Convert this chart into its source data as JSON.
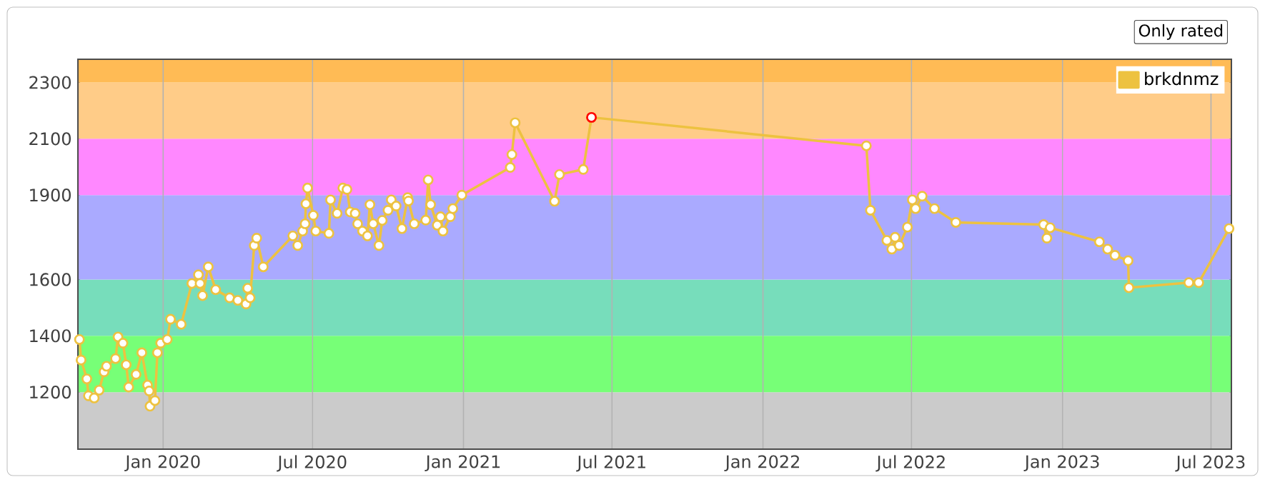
{
  "chart_data": {
    "type": "line",
    "legend": "top right",
    "grid": "x",
    "marker": "circle",
    "annotations": [
      "Only rated"
    ],
    "xlim": [
      "2019-09-20",
      "2023-07-25"
    ],
    "ylim": [
      1000,
      2380
    ],
    "xticks": [
      {
        "value": "2020-01-01",
        "label": "Jan 2020"
      },
      {
        "value": "2020-07-01",
        "label": "Jul 2020"
      },
      {
        "value": "2021-01-01",
        "label": "Jan 2021"
      },
      {
        "value": "2021-07-01",
        "label": "Jul 2021"
      },
      {
        "value": "2022-01-01",
        "label": "Jan 2022"
      },
      {
        "value": "2022-07-01",
        "label": "Jul 2022"
      },
      {
        "value": "2023-01-01",
        "label": "Jan 2023"
      },
      {
        "value": "2023-07-01",
        "label": "Jul 2023"
      }
    ],
    "yticks": [
      1200,
      1400,
      1600,
      1900,
      2100,
      2300
    ],
    "bands": [
      {
        "axis": "y",
        "from": 1000,
        "to": 1200,
        "color": "#cbcbcb"
      },
      {
        "axis": "y",
        "from": 1200,
        "to": 1400,
        "color": "#77ff77"
      },
      {
        "axis": "y",
        "from": 1400,
        "to": 1600,
        "color": "#77ddbb"
      },
      {
        "axis": "y",
        "from": 1600,
        "to": 1900,
        "color": "#aaaaff"
      },
      {
        "axis": "y",
        "from": 1900,
        "to": 2100,
        "color": "#ff88ff"
      },
      {
        "axis": "y",
        "from": 2100,
        "to": 2300,
        "color": "#ffcc88"
      },
      {
        "axis": "y",
        "from": 2300,
        "to": 2380,
        "color": "#ffbb55"
      }
    ],
    "series": [
      {
        "name": "brkdnmz",
        "color": "#edc240",
        "x": [
          "2019-09-21",
          "2019-09-23",
          "2019-09-30",
          "2019-10-02",
          "2019-10-09",
          "2019-10-15",
          "2019-10-21",
          "2019-10-24",
          "2019-11-04",
          "2019-11-07",
          "2019-11-13",
          "2019-11-17",
          "2019-11-20",
          "2019-11-29",
          "2019-12-06",
          "2019-12-13",
          "2019-12-15",
          "2019-12-16",
          "2019-12-22",
          "2019-12-25",
          "2019-12-29",
          "2020-01-06",
          "2020-01-10",
          "2020-01-23",
          "2020-02-05",
          "2020-02-13",
          "2020-02-15",
          "2020-02-18",
          "2020-02-25",
          "2020-03-05",
          "2020-03-22",
          "2020-04-01",
          "2020-04-11",
          "2020-04-13",
          "2020-04-16",
          "2020-04-21",
          "2020-04-24",
          "2020-05-02",
          "2020-06-07",
          "2020-06-13",
          "2020-06-19",
          "2020-06-22",
          "2020-06-23",
          "2020-06-25",
          "2020-07-02",
          "2020-07-05",
          "2020-07-21",
          "2020-07-23",
          "2020-07-31",
          "2020-08-07",
          "2020-08-12",
          "2020-08-16",
          "2020-08-22",
          "2020-08-25",
          "2020-08-31",
          "2020-09-06",
          "2020-09-09",
          "2020-09-13",
          "2020-09-20",
          "2020-09-24",
          "2020-10-01",
          "2020-10-05",
          "2020-10-11",
          "2020-10-18",
          "2020-10-25",
          "2020-10-26",
          "2020-11-02",
          "2020-11-16",
          "2020-11-19",
          "2020-11-22",
          "2020-11-30",
          "2020-12-04",
          "2020-12-07",
          "2020-12-16",
          "2020-12-19",
          "2020-12-30",
          "2021-02-27",
          "2021-03-01",
          "2021-03-05",
          "2021-04-22",
          "2021-04-28",
          "2021-05-27",
          "2021-06-06",
          "2022-05-07",
          "2022-05-12",
          "2022-06-01",
          "2022-06-07",
          "2022-06-11",
          "2022-06-16",
          "2022-06-26",
          "2022-07-02",
          "2022-07-06",
          "2022-07-14",
          "2022-07-29",
          "2022-08-24",
          "2022-12-09",
          "2022-12-13",
          "2022-12-17",
          "2023-02-15",
          "2023-02-25",
          "2023-03-06",
          "2023-03-22",
          "2023-03-23",
          "2023-06-04",
          "2023-06-16",
          "2023-07-23"
        ],
        "values": [
          1387,
          1314,
          1247,
          1187,
          1179,
          1207,
          1272,
          1292,
          1319,
          1396,
          1374,
          1297,
          1218,
          1263,
          1340,
          1225,
          1204,
          1150,
          1170,
          1340,
          1374,
          1387,
          1459,
          1441,
          1586,
          1617,
          1586,
          1543,
          1645,
          1564,
          1535,
          1526,
          1513,
          1569,
          1535,
          1721,
          1747,
          1645,
          1755,
          1721,
          1772,
          1798,
          1869,
          1925,
          1828,
          1772,
          1764,
          1883,
          1835,
          1925,
          1920,
          1840,
          1835,
          1798,
          1772,
          1755,
          1866,
          1798,
          1721,
          1810,
          1846,
          1883,
          1861,
          1781,
          1891,
          1879,
          1798,
          1811,
          1954,
          1866,
          1793,
          1823,
          1772,
          1823,
          1852,
          1900,
          1998,
          2044,
          2157,
          1878,
          1973,
          1991,
          2176,
          2075,
          1846,
          1739,
          1708,
          1750,
          1721,
          1786,
          1883,
          1852,
          1896,
          1852,
          1803,
          1795,
          1747,
          1784,
          1734,
          1708,
          1686,
          1667,
          1571,
          1589,
          1589,
          1781
        ]
      },
      {
        "type": "scatter",
        "color": "#ff0000",
        "x": [
          "2021-06-06"
        ],
        "values": [
          2176
        ]
      }
    ]
  }
}
